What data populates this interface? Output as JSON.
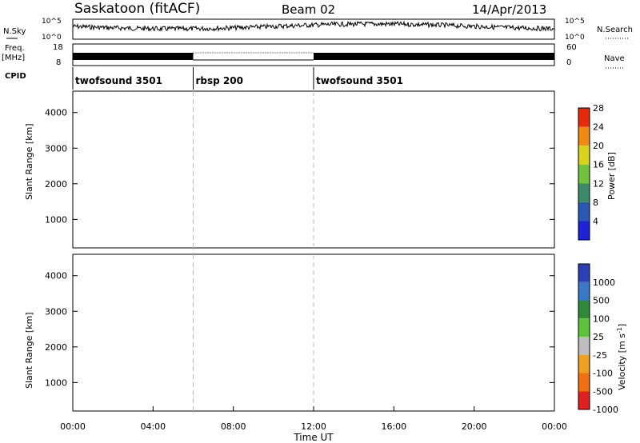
{
  "header": {
    "title": "Saskatoon (fitACF)",
    "beam": "Beam 02",
    "date": "14/Apr/2013"
  },
  "summary": {
    "nsky_label": "N.Sky",
    "nsky_ticks": [
      "10^5",
      "10^0"
    ],
    "nsearch_label": "N.Search",
    "nsearch_ticks": [
      "10^5",
      "10^0"
    ],
    "freq_label": "Freq.",
    "freq_unit": "[MHz]",
    "freq_ticks": [
      "18",
      "8"
    ],
    "nave_label": "Nave",
    "nave_ticks": [
      "60",
      "0"
    ],
    "cpid_label": "CPID"
  },
  "cpid_segments": [
    {
      "label": "twofsound 3501",
      "start": 0,
      "end": 6
    },
    {
      "label": "rbsp 200",
      "start": 6,
      "end": 12
    },
    {
      "label": "twofsound 3501",
      "start": 12,
      "end": 24
    }
  ],
  "chart_data": [
    {
      "type": "heatmap",
      "name": "power",
      "ylabel": "Slant Range [km]",
      "y_ticks": [
        "1000",
        "2000",
        "3000",
        "4000"
      ],
      "ylim": [
        200,
        4600
      ],
      "xlim": [
        0,
        24
      ],
      "colorbar_label": "Power [dB]",
      "colorbar_ticks": [
        "4",
        "8",
        "12",
        "16",
        "20",
        "24",
        "28"
      ],
      "colors": [
        "#1d21d8",
        "#2a57b4",
        "#3b8a6c",
        "#71c23c",
        "#d8d21a",
        "#f08a10",
        "#e82a0c"
      ]
    },
    {
      "type": "heatmap",
      "name": "velocity",
      "ylabel": "Slant Range [km]",
      "y_ticks": [
        "1000",
        "2000",
        "3000",
        "4000"
      ],
      "ylim": [
        200,
        4600
      ],
      "xlim": [
        0,
        24
      ],
      "xlabel": "Time UT",
      "x_ticks": [
        "00:00",
        "04:00",
        "08:00",
        "12:00",
        "16:00",
        "20:00",
        "00:00"
      ],
      "colorbar_label": "Velocity [m s",
      "colorbar_unit_sup": "-1",
      "colorbar_ticks": [
        "1000",
        "500",
        "100",
        "25",
        "-25",
        "-100",
        "-500",
        "-1000"
      ],
      "colors": [
        "#2b3fb8",
        "#3a78c8",
        "#2f8a3a",
        "#5cc23a",
        "#bdbdbd",
        "#f0a020",
        "#f07010",
        "#e02020"
      ]
    }
  ]
}
